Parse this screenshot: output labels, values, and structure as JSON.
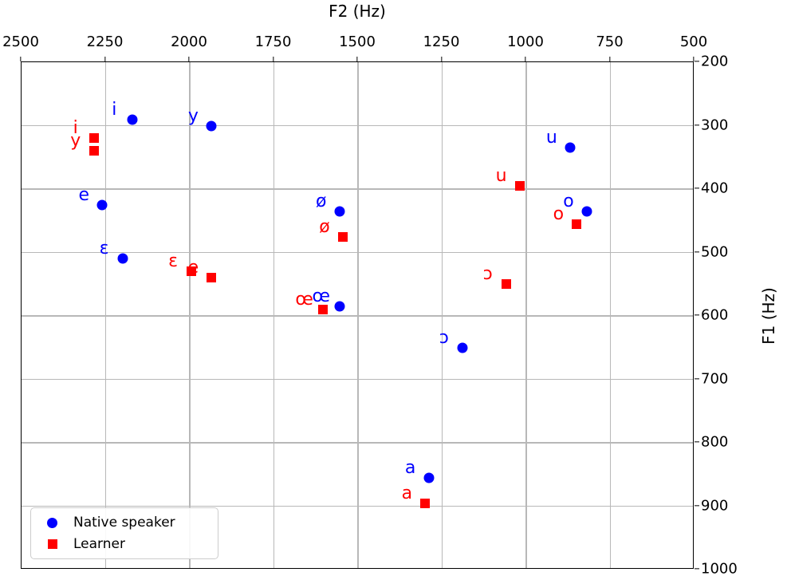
{
  "chart_data": {
    "type": "scatter",
    "xlabel": "F2 (Hz)",
    "ylabel": "F1 (Hz)",
    "x_axis": {
      "label": "F2 (Hz)",
      "position": "top",
      "min": 500,
      "max": 2500,
      "reversed": true,
      "ticks": [
        2500,
        2250,
        2000,
        1750,
        1500,
        1250,
        1000,
        750,
        500
      ]
    },
    "y_axis": {
      "label": "F1 (Hz)",
      "position": "right",
      "min": 200,
      "max": 1000,
      "reversed": true,
      "ticks": [
        200,
        300,
        400,
        500,
        600,
        700,
        800,
        900,
        1000
      ]
    },
    "grid": true,
    "colors": {
      "native": "#0000ff",
      "learner": "#ff0000",
      "grid": "#b8b8b8",
      "axis": "#000000"
    },
    "legend": {
      "position": "lower left"
    },
    "series": [
      {
        "name": "Native speaker",
        "marker": "circle",
        "color": "#0000ff",
        "points": [
          {
            "vowel": "i",
            "f2": 2170,
            "f1": 290
          },
          {
            "vowel": "y",
            "f2": 1935,
            "f1": 300
          },
          {
            "vowel": "e",
            "f2": 2260,
            "f1": 425
          },
          {
            "vowel": "ɛ",
            "f2": 2200,
            "f1": 510
          },
          {
            "vowel": "ø",
            "f2": 1555,
            "f1": 435
          },
          {
            "vowel": "œ",
            "f2": 1555,
            "f1": 585
          },
          {
            "vowel": "a",
            "f2": 1290,
            "f1": 855
          },
          {
            "vowel": "ɔ",
            "f2": 1190,
            "f1": 650
          },
          {
            "vowel": "o",
            "f2": 820,
            "f1": 435
          },
          {
            "vowel": "u",
            "f2": 870,
            "f1": 335
          }
        ]
      },
      {
        "name": "Learner",
        "marker": "square",
        "color": "#ff0000",
        "points": [
          {
            "vowel": "i",
            "f2": 2285,
            "f1": 320
          },
          {
            "vowel": "y",
            "f2": 2285,
            "f1": 340
          },
          {
            "vowel": "e",
            "f2": 1935,
            "f1": 540
          },
          {
            "vowel": "ɛ",
            "f2": 1995,
            "f1": 530
          },
          {
            "vowel": "ø",
            "f2": 1545,
            "f1": 475
          },
          {
            "vowel": "œ",
            "f2": 1605,
            "f1": 590
          },
          {
            "vowel": "a",
            "f2": 1300,
            "f1": 895
          },
          {
            "vowel": "ɔ",
            "f2": 1060,
            "f1": 550
          },
          {
            "vowel": "o",
            "f2": 850,
            "f1": 455
          },
          {
            "vowel": "u",
            "f2": 1020,
            "f1": 395
          }
        ]
      }
    ]
  }
}
